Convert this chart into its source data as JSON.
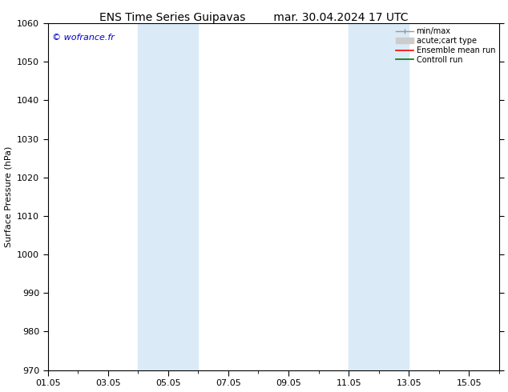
{
  "title_left": "ENS Time Series Guipavas",
  "title_right": "mar. 30.04.2024 17 UTC",
  "ylabel": "Surface Pressure (hPa)",
  "ylim": [
    970,
    1060
  ],
  "yticks": [
    970,
    980,
    990,
    1000,
    1010,
    1020,
    1030,
    1040,
    1050,
    1060
  ],
  "xtick_labels": [
    "01.05",
    "03.05",
    "05.05",
    "07.05",
    "09.05",
    "11.05",
    "13.05",
    "15.05"
  ],
  "xtick_days": [
    1,
    3,
    5,
    7,
    9,
    11,
    13,
    15
  ],
  "xstart_day": 1,
  "xend_day": 16,
  "shaded_bands": [
    {
      "xmin_day": 4,
      "xmax_day": 6
    },
    {
      "xmin_day": 11,
      "xmax_day": 13
    }
  ],
  "shade_color": "#daeaf7",
  "bg_color": "#ffffff",
  "plot_bg_color": "#ffffff",
  "copyright_text": "© wofrance.fr",
  "copyright_color": "#0000cc",
  "legend_minmax_color": "#999999",
  "legend_acutecat_color": "#cccccc",
  "legend_ensemble_color": "#ff0000",
  "legend_control_color": "#007700",
  "grid_color": "#bbbbbb",
  "spine_color": "#000000",
  "title_fontsize": 10,
  "label_fontsize": 8,
  "tick_fontsize": 8,
  "copyright_fontsize": 8
}
